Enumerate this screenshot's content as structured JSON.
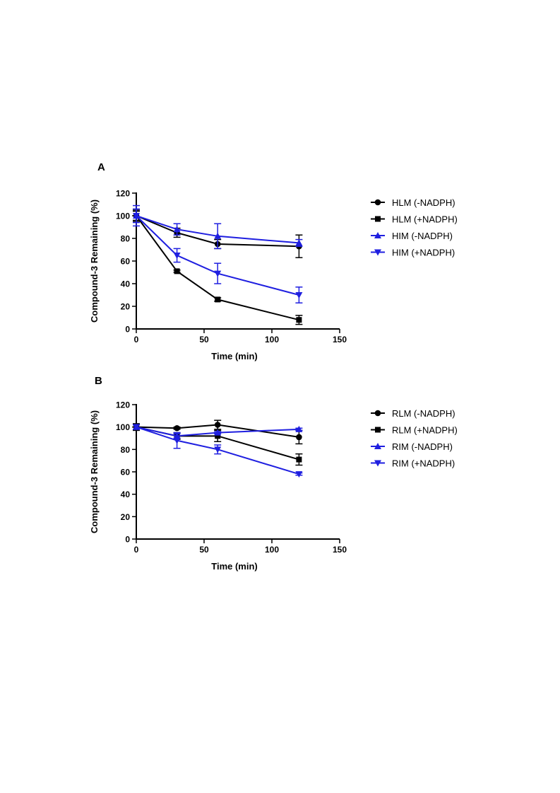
{
  "colors": {
    "black": "#000000",
    "blue": "#1f1fe0"
  },
  "chart_data": [
    {
      "type": "line",
      "panel_label": "A",
      "xlabel": "Time (min)",
      "ylabel": "Compound-3 Remaining (%)",
      "xlim": [
        0,
        150
      ],
      "ylim": [
        0,
        120
      ],
      "xticks": [
        0,
        50,
        100,
        150
      ],
      "yticks": [
        0,
        20,
        40,
        60,
        80,
        100,
        120
      ],
      "grid": false,
      "legend_position": "right",
      "series": [
        {
          "name": "HLM (-NADPH)",
          "color": "#000000",
          "marker": "circle",
          "x": [
            0,
            30,
            60,
            120
          ],
          "y": [
            100,
            85,
            75,
            73
          ],
          "err": [
            5,
            4,
            4,
            10
          ]
        },
        {
          "name": "HLM (+NADPH)",
          "color": "#000000",
          "marker": "square",
          "x": [
            0,
            30,
            60,
            120
          ],
          "y": [
            100,
            51,
            26,
            8
          ],
          "err": [
            4,
            1,
            1.5,
            4
          ]
        },
        {
          "name": "HIM (-NADPH)",
          "color": "#1f1fe0",
          "marker": "triangle-up",
          "x": [
            0,
            30,
            60,
            120
          ],
          "y": [
            100,
            88,
            82,
            76
          ],
          "err": [
            6,
            5,
            11,
            3
          ]
        },
        {
          "name": "HIM (+NADPH)",
          "color": "#1f1fe0",
          "marker": "triangle-down",
          "x": [
            0,
            30,
            60,
            120
          ],
          "y": [
            100,
            65,
            49,
            30
          ],
          "err": [
            9,
            6,
            9,
            7
          ]
        }
      ]
    },
    {
      "type": "line",
      "panel_label": "B",
      "xlabel": "Time (min)",
      "ylabel": "Compound-3 Remaining (%)",
      "xlim": [
        0,
        150
      ],
      "ylim": [
        0,
        120
      ],
      "xticks": [
        0,
        50,
        100,
        150
      ],
      "yticks": [
        0,
        20,
        40,
        60,
        80,
        100,
        120
      ],
      "grid": false,
      "legend_position": "right",
      "series": [
        {
          "name": "RLM (-NADPH)",
          "color": "#000000",
          "marker": "circle",
          "x": [
            0,
            30,
            60,
            120
          ],
          "y": [
            100,
            99,
            102,
            91
          ],
          "err": [
            2,
            1,
            4,
            6
          ]
        },
        {
          "name": "RLM (+NADPH)",
          "color": "#000000",
          "marker": "square",
          "x": [
            0,
            30,
            60,
            120
          ],
          "y": [
            100,
            92,
            92,
            71
          ],
          "err": [
            3,
            3,
            5,
            5
          ]
        },
        {
          "name": "RIM (-NADPH)",
          "color": "#1f1fe0",
          "marker": "triangle-up",
          "x": [
            0,
            30,
            60,
            120
          ],
          "y": [
            100,
            92,
            95,
            98
          ],
          "err": [
            2,
            2,
            1,
            1
          ]
        },
        {
          "name": "RIM (+NADPH)",
          "color": "#1f1fe0",
          "marker": "triangle-down",
          "x": [
            0,
            30,
            60,
            120
          ],
          "y": [
            100,
            88,
            80,
            58
          ],
          "err": [
            2,
            7,
            4,
            1
          ]
        }
      ]
    }
  ]
}
